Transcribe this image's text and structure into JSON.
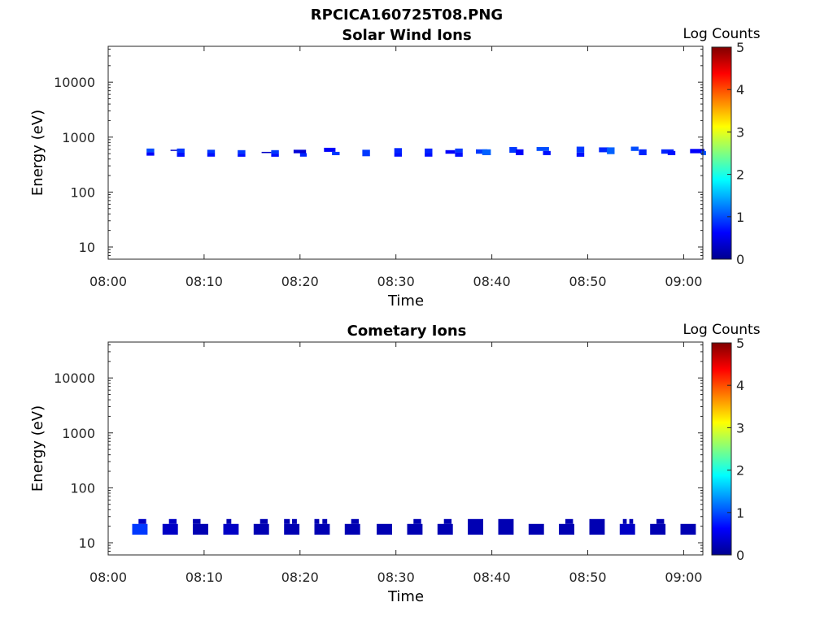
{
  "figure_title": "RPCICA160725T08.PNG",
  "colormap": [
    "#00008f",
    "#0000ff",
    "#0080ff",
    "#00ffff",
    "#80ff80",
    "#ffff00",
    "#ff8000",
    "#ff0000",
    "#800000"
  ],
  "chart_data": [
    {
      "type": "heatmap",
      "title": "Solar Wind Ions",
      "xlabel": "Time",
      "ylabel": "Energy (eV)",
      "yscale": "log",
      "xlim": [
        "08:00",
        "09:02"
      ],
      "ylim": [
        6,
        45000
      ],
      "x_ticks": [
        "08:00",
        "08:10",
        "08:20",
        "08:30",
        "08:40",
        "08:50",
        "09:00"
      ],
      "y_ticks": [
        "10",
        "100",
        "1000",
        "10000"
      ],
      "grid": false,
      "colorbar": {
        "label": "Log Counts",
        "range": [
          0,
          5
        ],
        "ticks": [
          "0",
          "1",
          "2",
          "3",
          "4",
          "5"
        ]
      },
      "cells": [
        {
          "t": "08:04:00",
          "dt": 0.8,
          "e_lo": 530,
          "e_hi": 620,
          "c": 1.0
        },
        {
          "t": "08:04:00",
          "dt": 0.8,
          "e_lo": 460,
          "e_hi": 530,
          "c": 0.6
        },
        {
          "t": "08:06:30",
          "dt": 1.0,
          "e_lo": 575,
          "e_hi": 590,
          "c": 0.3
        },
        {
          "t": "08:07:10",
          "dt": 0.8,
          "e_lo": 520,
          "e_hi": 620,
          "c": 0.9
        },
        {
          "t": "08:07:10",
          "dt": 0.8,
          "e_lo": 440,
          "e_hi": 520,
          "c": 0.7
        },
        {
          "t": "08:10:20",
          "dt": 0.8,
          "e_lo": 510,
          "e_hi": 590,
          "c": 0.9
        },
        {
          "t": "08:10:20",
          "dt": 0.8,
          "e_lo": 440,
          "e_hi": 510,
          "c": 0.7
        },
        {
          "t": "08:13:30",
          "dt": 0.8,
          "e_lo": 500,
          "e_hi": 580,
          "c": 0.9
        },
        {
          "t": "08:13:30",
          "dt": 0.8,
          "e_lo": 440,
          "e_hi": 500,
          "c": 0.7
        },
        {
          "t": "08:16:00",
          "dt": 1.0,
          "e_lo": 525,
          "e_hi": 540,
          "c": 0.3
        },
        {
          "t": "08:17:00",
          "dt": 0.8,
          "e_lo": 500,
          "e_hi": 580,
          "c": 0.9
        },
        {
          "t": "08:17:00",
          "dt": 0.8,
          "e_lo": 440,
          "e_hi": 500,
          "c": 0.7
        },
        {
          "t": "08:19:20",
          "dt": 1.3,
          "e_lo": 510,
          "e_hi": 590,
          "c": 0.4
        },
        {
          "t": "08:20:00",
          "dt": 0.7,
          "e_lo": 440,
          "e_hi": 510,
          "c": 0.8
        },
        {
          "t": "08:22:30",
          "dt": 1.2,
          "e_lo": 540,
          "e_hi": 640,
          "c": 0.6
        },
        {
          "t": "08:23:20",
          "dt": 0.8,
          "e_lo": 470,
          "e_hi": 540,
          "c": 0.9
        },
        {
          "t": "08:26:30",
          "dt": 0.8,
          "e_lo": 450,
          "e_hi": 590,
          "c": 0.9
        },
        {
          "t": "08:29:50",
          "dt": 0.8,
          "e_lo": 510,
          "e_hi": 630,
          "c": 0.8
        },
        {
          "t": "08:29:50",
          "dt": 0.8,
          "e_lo": 440,
          "e_hi": 510,
          "c": 0.7
        },
        {
          "t": "08:33:00",
          "dt": 0.8,
          "e_lo": 510,
          "e_hi": 620,
          "c": 0.8
        },
        {
          "t": "08:33:00",
          "dt": 0.8,
          "e_lo": 440,
          "e_hi": 510,
          "c": 0.7
        },
        {
          "t": "08:35:10",
          "dt": 1.0,
          "e_lo": 500,
          "e_hi": 580,
          "c": 0.6
        },
        {
          "t": "08:36:10",
          "dt": 0.8,
          "e_lo": 530,
          "e_hi": 620,
          "c": 0.9
        },
        {
          "t": "08:36:10",
          "dt": 0.8,
          "e_lo": 440,
          "e_hi": 530,
          "c": 0.7
        },
        {
          "t": "08:38:20",
          "dt": 1.2,
          "e_lo": 500,
          "e_hi": 600,
          "c": 0.9
        },
        {
          "t": "08:39:00",
          "dt": 0.9,
          "e_lo": 470,
          "e_hi": 600,
          "c": 1.1
        },
        {
          "t": "08:41:50",
          "dt": 0.8,
          "e_lo": 520,
          "e_hi": 660,
          "c": 0.9
        },
        {
          "t": "08:42:30",
          "dt": 0.8,
          "e_lo": 470,
          "e_hi": 600,
          "c": 0.6
        },
        {
          "t": "08:44:40",
          "dt": 1.3,
          "e_lo": 560,
          "e_hi": 660,
          "c": 1.0
        },
        {
          "t": "08:45:20",
          "dt": 0.8,
          "e_lo": 470,
          "e_hi": 560,
          "c": 0.7
        },
        {
          "t": "08:48:50",
          "dt": 0.8,
          "e_lo": 520,
          "e_hi": 670,
          "c": 0.9
        },
        {
          "t": "08:48:50",
          "dt": 0.8,
          "e_lo": 440,
          "e_hi": 520,
          "c": 0.7
        },
        {
          "t": "08:51:10",
          "dt": 1.0,
          "e_lo": 530,
          "e_hi": 650,
          "c": 0.8
        },
        {
          "t": "08:52:00",
          "dt": 0.8,
          "e_lo": 490,
          "e_hi": 650,
          "c": 1.1
        },
        {
          "t": "08:54:30",
          "dt": 0.8,
          "e_lo": 560,
          "e_hi": 670,
          "c": 1.0
        },
        {
          "t": "08:55:20",
          "dt": 0.8,
          "e_lo": 470,
          "e_hi": 600,
          "c": 0.8
        },
        {
          "t": "08:57:40",
          "dt": 1.3,
          "e_lo": 500,
          "e_hi": 600,
          "c": 0.8
        },
        {
          "t": "08:58:20",
          "dt": 0.8,
          "e_lo": 470,
          "e_hi": 560,
          "c": 0.7
        },
        {
          "t": "09:00:40",
          "dt": 1.5,
          "e_lo": 510,
          "e_hi": 610,
          "c": 0.6
        },
        {
          "t": "09:01:50",
          "dt": 0.5,
          "e_lo": 470,
          "e_hi": 560,
          "c": 1.0
        }
      ]
    },
    {
      "type": "heatmap",
      "title": "Cometary Ions",
      "xlabel": "Time",
      "ylabel": "Energy (eV)",
      "yscale": "log",
      "xlim": [
        "08:00",
        "09:02"
      ],
      "ylim": [
        6,
        45000
      ],
      "x_ticks": [
        "08:00",
        "08:10",
        "08:20",
        "08:30",
        "08:40",
        "08:50",
        "09:00"
      ],
      "y_ticks": [
        "10",
        "100",
        "1000",
        "10000"
      ],
      "grid": false,
      "colorbar": {
        "label": "Log Counts",
        "range": [
          0,
          5
        ],
        "ticks": [
          "0",
          "1",
          "2",
          "3",
          "4",
          "5"
        ]
      },
      "cells": [
        {
          "t": "08:02:30",
          "dt": 1.6,
          "e_lo": 14,
          "e_hi": 22,
          "c": 0.9
        },
        {
          "t": "08:03:10",
          "dt": 0.8,
          "e_lo": 22,
          "e_hi": 27,
          "c": 0.3
        },
        {
          "t": "08:05:40",
          "dt": 1.6,
          "e_lo": 14,
          "e_hi": 22,
          "c": 0.3
        },
        {
          "t": "08:06:20",
          "dt": 0.8,
          "e_lo": 22,
          "e_hi": 27,
          "c": 0.3
        },
        {
          "t": "08:08:50",
          "dt": 1.6,
          "e_lo": 14,
          "e_hi": 22,
          "c": 0.2
        },
        {
          "t": "08:08:50",
          "dt": 0.8,
          "e_lo": 22,
          "e_hi": 27,
          "c": 0.2
        },
        {
          "t": "08:12:00",
          "dt": 1.6,
          "e_lo": 14,
          "e_hi": 22,
          "c": 0.3
        },
        {
          "t": "08:12:20",
          "dt": 0.5,
          "e_lo": 22,
          "e_hi": 27,
          "c": 0.2
        },
        {
          "t": "08:15:10",
          "dt": 1.6,
          "e_lo": 14,
          "e_hi": 22,
          "c": 0.2
        },
        {
          "t": "08:15:50",
          "dt": 0.8,
          "e_lo": 22,
          "e_hi": 27,
          "c": 0.2
        },
        {
          "t": "08:18:20",
          "dt": 1.6,
          "e_lo": 14,
          "e_hi": 22,
          "c": 0.2
        },
        {
          "t": "08:18:20",
          "dt": 0.6,
          "e_lo": 22,
          "e_hi": 27,
          "c": 0.2
        },
        {
          "t": "08:19:10",
          "dt": 0.5,
          "e_lo": 22,
          "e_hi": 27,
          "c": 0.2
        },
        {
          "t": "08:21:30",
          "dt": 1.6,
          "e_lo": 14,
          "e_hi": 22,
          "c": 0.2
        },
        {
          "t": "08:21:30",
          "dt": 0.5,
          "e_lo": 22,
          "e_hi": 27,
          "c": 0.2
        },
        {
          "t": "08:22:20",
          "dt": 0.5,
          "e_lo": 22,
          "e_hi": 27,
          "c": 0.2
        },
        {
          "t": "08:24:40",
          "dt": 1.6,
          "e_lo": 14,
          "e_hi": 22,
          "c": 0.2
        },
        {
          "t": "08:25:20",
          "dt": 0.8,
          "e_lo": 22,
          "e_hi": 27,
          "c": 0.2
        },
        {
          "t": "08:28:00",
          "dt": 1.6,
          "e_lo": 14,
          "e_hi": 22,
          "c": 0.2
        },
        {
          "t": "08:31:10",
          "dt": 1.6,
          "e_lo": 14,
          "e_hi": 22,
          "c": 0.2
        },
        {
          "t": "08:31:50",
          "dt": 0.8,
          "e_lo": 22,
          "e_hi": 27,
          "c": 0.2
        },
        {
          "t": "08:34:20",
          "dt": 1.6,
          "e_lo": 14,
          "e_hi": 22,
          "c": 0.2
        },
        {
          "t": "08:35:00",
          "dt": 0.8,
          "e_lo": 22,
          "e_hi": 27,
          "c": 0.2
        },
        {
          "t": "08:37:30",
          "dt": 1.6,
          "e_lo": 14,
          "e_hi": 27,
          "c": 0.2
        },
        {
          "t": "08:40:40",
          "dt": 1.6,
          "e_lo": 14,
          "e_hi": 27,
          "c": 0.2
        },
        {
          "t": "08:43:50",
          "dt": 1.6,
          "e_lo": 14,
          "e_hi": 22,
          "c": 0.2
        },
        {
          "t": "08:47:00",
          "dt": 1.6,
          "e_lo": 14,
          "e_hi": 22,
          "c": 0.2
        },
        {
          "t": "08:47:40",
          "dt": 0.8,
          "e_lo": 22,
          "e_hi": 27,
          "c": 0.2
        },
        {
          "t": "08:50:10",
          "dt": 1.6,
          "e_lo": 14,
          "e_hi": 27,
          "c": 0.2
        },
        {
          "t": "08:53:20",
          "dt": 1.6,
          "e_lo": 14,
          "e_hi": 22,
          "c": 0.3
        },
        {
          "t": "08:53:40",
          "dt": 0.4,
          "e_lo": 22,
          "e_hi": 27,
          "c": 0.2
        },
        {
          "t": "08:54:20",
          "dt": 0.4,
          "e_lo": 22,
          "e_hi": 27,
          "c": 0.2
        },
        {
          "t": "08:56:30",
          "dt": 1.6,
          "e_lo": 14,
          "e_hi": 22,
          "c": 0.2
        },
        {
          "t": "08:57:10",
          "dt": 0.8,
          "e_lo": 22,
          "e_hi": 27,
          "c": 0.2
        },
        {
          "t": "08:59:40",
          "dt": 1.6,
          "e_lo": 14,
          "e_hi": 22,
          "c": 0.2
        }
      ]
    }
  ]
}
